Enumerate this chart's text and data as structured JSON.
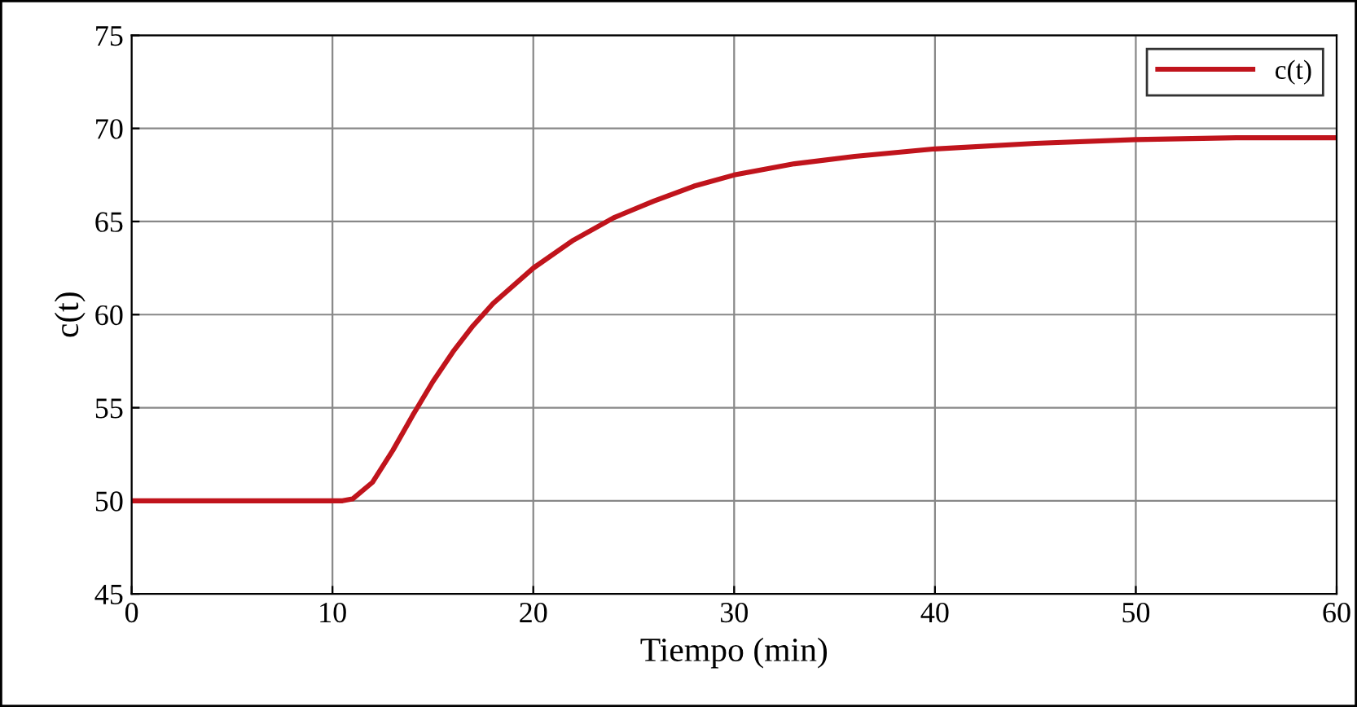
{
  "chart_data": {
    "type": "line",
    "xlabel": "Tiempo (min)",
    "ylabel": "c(t)",
    "xlim": [
      0,
      60
    ],
    "ylim": [
      45,
      75
    ],
    "xticks": [
      0,
      10,
      20,
      30,
      40,
      50,
      60
    ],
    "yticks": [
      45,
      50,
      55,
      60,
      65,
      70,
      75
    ],
    "grid": true,
    "legend": "top right",
    "line_style": "solid",
    "marker": "none",
    "series": [
      {
        "name": "c(t)",
        "color": "#c0141c",
        "x": [
          0,
          5,
          10,
          10.5,
          11,
          12,
          13,
          14,
          15,
          16,
          17,
          18,
          20,
          22,
          24,
          26,
          28,
          30,
          33,
          36,
          40,
          45,
          50,
          55,
          60
        ],
        "values": [
          50,
          50,
          50,
          50,
          50.1,
          51,
          52.7,
          54.6,
          56.4,
          58,
          59.4,
          60.6,
          62.5,
          64,
          65.2,
          66.1,
          66.9,
          67.5,
          68.1,
          68.5,
          68.9,
          69.2,
          69.4,
          69.5,
          69.5
        ]
      }
    ]
  }
}
